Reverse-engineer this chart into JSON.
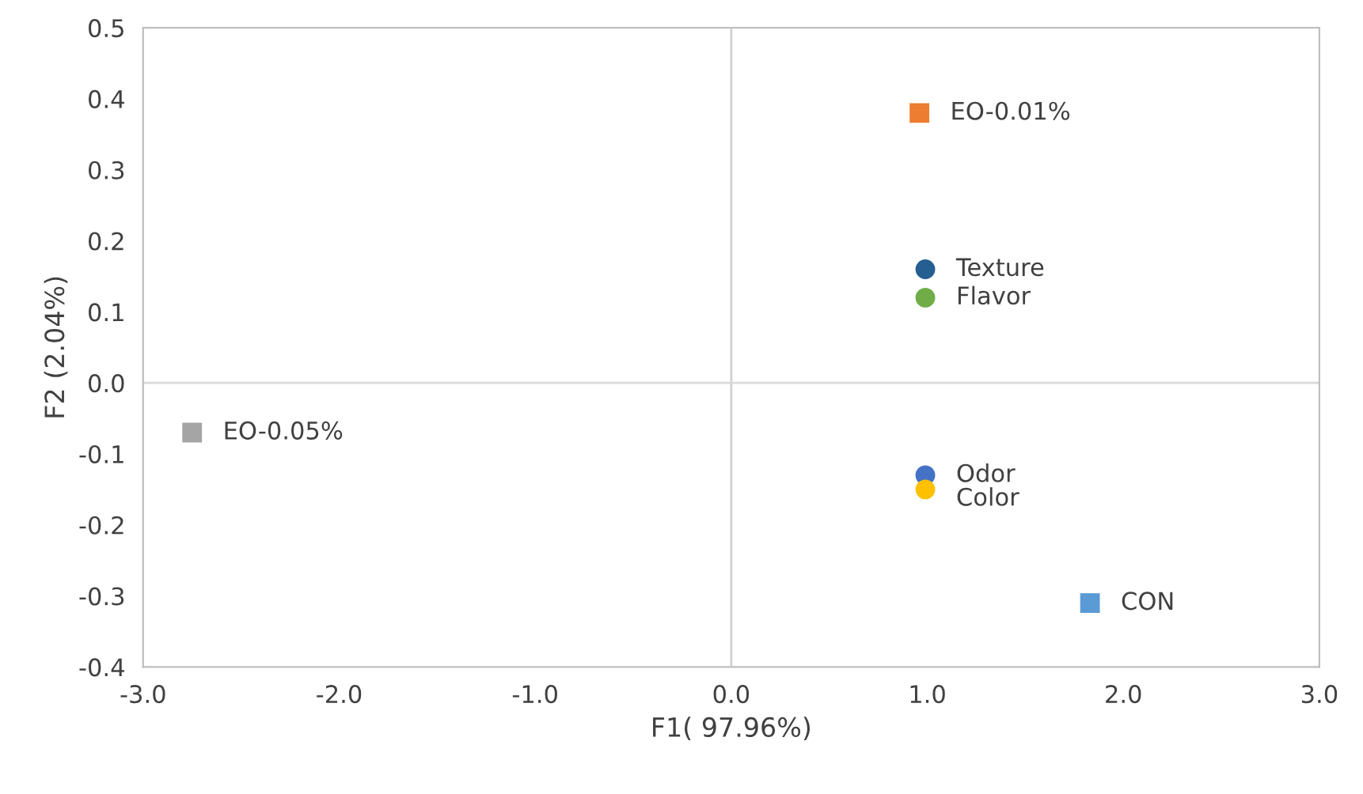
{
  "chart_data": {
    "type": "scatter",
    "xlabel": "F1( 97.96%)",
    "ylabel": "F2 (2.04%)",
    "series": [
      {
        "name": "EO-0.01%",
        "color": "#ed7d31",
        "marker": "square",
        "x": [
          0.96
        ],
        "values": [
          0.38
        ]
      },
      {
        "name": "Texture",
        "color": "#255e91",
        "marker": "circle",
        "x": [
          0.99
        ],
        "values": [
          0.16
        ]
      },
      {
        "name": "Flavor",
        "color": "#70ad47",
        "marker": "circle",
        "x": [
          0.99
        ],
        "values": [
          0.12
        ]
      },
      {
        "name": "EO-0.05%",
        "color": "#a5a5a5",
        "marker": "square",
        "x": [
          -2.75
        ],
        "values": [
          -0.07
        ]
      },
      {
        "name": "Odor",
        "color": "#4472c4",
        "marker": "circle",
        "x": [
          0.99
        ],
        "values": [
          -0.13
        ]
      },
      {
        "name": "Color",
        "color": "#ffc000",
        "marker": "circle",
        "x": [
          0.99
        ],
        "values": [
          -0.15
        ]
      },
      {
        "name": "CON",
        "color": "#5b9bd5",
        "marker": "square",
        "x": [
          1.83
        ],
        "values": [
          -0.31
        ]
      }
    ],
    "xlim": [
      -3.0,
      3.0
    ],
    "xticks": [
      {
        "value": -3,
        "label": "-3.0"
      },
      {
        "value": -2,
        "label": "-2.0"
      },
      {
        "value": -1,
        "label": "-1.0"
      },
      {
        "value": 0,
        "label": "0.0"
      },
      {
        "value": 1,
        "label": "1.0"
      },
      {
        "value": 2,
        "label": "2.0"
      },
      {
        "value": 3,
        "label": "3.0"
      }
    ],
    "ylim": [
      -0.4,
      0.5
    ],
    "yticks": [
      {
        "value": -0.4,
        "label": "-0.4"
      },
      {
        "value": -0.3,
        "label": "-0.3"
      },
      {
        "value": -0.2,
        "label": "-0.2"
      },
      {
        "value": -0.1,
        "label": "-0.1"
      },
      {
        "value": 0,
        "label": "0.0"
      },
      {
        "value": 0.1,
        "label": "0.1"
      },
      {
        "value": 0.2,
        "label": "0.2"
      },
      {
        "value": 0.3,
        "label": "0.3"
      },
      {
        "value": 0.4,
        "label": "0.4"
      },
      {
        "value": 0.5,
        "label": "0.5"
      }
    ],
    "ref_lines": [
      {
        "axis": "x",
        "value": 0,
        "color": "#d0d0d0"
      },
      {
        "axis": "y",
        "value": 0,
        "color": "#d9d9d9"
      }
    ],
    "grid": false,
    "legend": false
  }
}
